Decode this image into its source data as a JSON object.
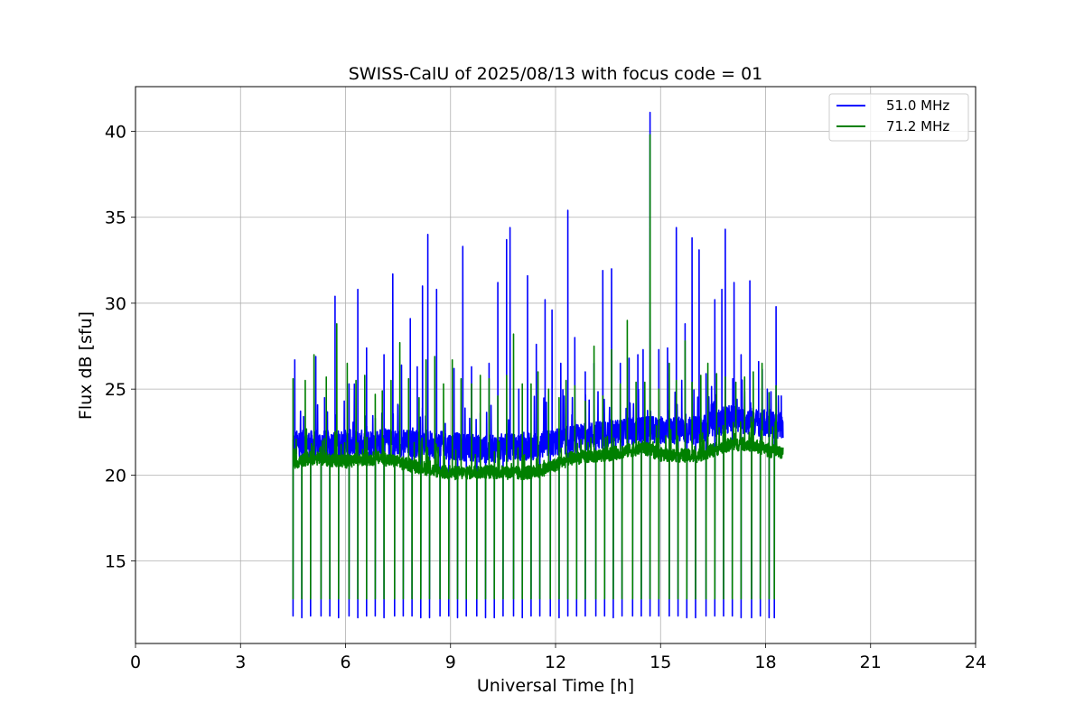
{
  "chart_data": {
    "type": "line",
    "title": "SWISS-CalU of 2025/08/13 with focus code = 01",
    "xlabel": "Universal Time [h]",
    "ylabel": "Flux dB [sfu]",
    "xlim": [
      0,
      24
    ],
    "ylim": [
      10.2,
      42.6
    ],
    "xticks": [
      0,
      3,
      6,
      9,
      12,
      15,
      18,
      21,
      24
    ],
    "yticks": [
      15,
      20,
      25,
      30,
      35,
      40
    ],
    "grid": true,
    "legend_position": "top-right",
    "series": [
      {
        "name": "51.0 MHz",
        "color": "#0000ff",
        "baseline": [
          [
            4.5,
            21.8
          ],
          [
            5.5,
            21.8
          ],
          [
            7.0,
            21.9
          ],
          [
            8.5,
            21.8
          ],
          [
            10.0,
            21.5
          ],
          [
            11.5,
            21.7
          ],
          [
            13.0,
            22.3
          ],
          [
            14.5,
            22.6
          ],
          [
            16.0,
            22.6
          ],
          [
            17.0,
            23.3
          ],
          [
            18.0,
            23.0
          ],
          [
            18.5,
            22.8
          ]
        ],
        "noise": 1.6,
        "spikes": [
          [
            4.55,
            26.7
          ],
          [
            4.8,
            23.4
          ],
          [
            5.15,
            26.9
          ],
          [
            5.4,
            24.5
          ],
          [
            5.7,
            30.4
          ],
          [
            6.1,
            25.3
          ],
          [
            6.35,
            30.8
          ],
          [
            6.6,
            27.4
          ],
          [
            6.85,
            23.3
          ],
          [
            7.1,
            27.0
          ],
          [
            7.35,
            31.7
          ],
          [
            7.6,
            26.4
          ],
          [
            7.85,
            29.1
          ],
          [
            8.05,
            26.3
          ],
          [
            8.2,
            31.0
          ],
          [
            8.35,
            34.0
          ],
          [
            8.6,
            30.8
          ],
          [
            8.85,
            23.0
          ],
          [
            9.1,
            26.2
          ],
          [
            9.35,
            33.3
          ],
          [
            9.6,
            26.3
          ],
          [
            9.85,
            23.6
          ],
          [
            10.1,
            26.5
          ],
          [
            10.35,
            31.2
          ],
          [
            10.6,
            33.7
          ],
          [
            10.7,
            34.4
          ],
          [
            10.95,
            25.0
          ],
          [
            11.2,
            31.6
          ],
          [
            11.45,
            27.6
          ],
          [
            11.7,
            30.2
          ],
          [
            11.9,
            29.6
          ],
          [
            12.15,
            26.5
          ],
          [
            12.35,
            35.4
          ],
          [
            12.55,
            28.0
          ],
          [
            12.85,
            26.0
          ],
          [
            13.1,
            26.5
          ],
          [
            13.35,
            31.9
          ],
          [
            13.6,
            32.0
          ],
          [
            13.85,
            26.5
          ],
          [
            14.1,
            26.8
          ],
          [
            14.35,
            27.0
          ],
          [
            14.5,
            27.3
          ],
          [
            14.7,
            41.1
          ],
          [
            14.95,
            27.3
          ],
          [
            15.2,
            27.4
          ],
          [
            15.45,
            34.4
          ],
          [
            15.7,
            28.8
          ],
          [
            15.9,
            33.8
          ],
          [
            16.1,
            33.1
          ],
          [
            16.3,
            25.9
          ],
          [
            16.55,
            30.2
          ],
          [
            16.75,
            30.8
          ],
          [
            16.85,
            34.3
          ],
          [
            17.1,
            31.2
          ],
          [
            17.3,
            27.0
          ],
          [
            17.55,
            31.3
          ],
          [
            17.8,
            26.6
          ],
          [
            18.05,
            25.0
          ],
          [
            18.3,
            29.8
          ],
          [
            18.45,
            24.6
          ]
        ],
        "dips": [
          [
            4.5,
            11.8
          ],
          [
            4.75,
            11.7
          ],
          [
            5.0,
            11.8
          ],
          [
            5.3,
            11.8
          ],
          [
            5.55,
            11.8
          ],
          [
            5.8,
            11.7
          ],
          [
            6.1,
            11.8
          ],
          [
            6.35,
            11.7
          ],
          [
            6.6,
            11.8
          ],
          [
            6.85,
            11.8
          ],
          [
            7.1,
            11.7
          ],
          [
            7.4,
            11.8
          ],
          [
            7.65,
            11.8
          ],
          [
            7.9,
            11.8
          ],
          [
            8.15,
            11.7
          ],
          [
            8.4,
            11.7
          ],
          [
            8.7,
            11.8
          ],
          [
            8.95,
            11.8
          ],
          [
            9.2,
            11.7
          ],
          [
            9.45,
            11.8
          ],
          [
            9.75,
            11.8
          ],
          [
            10.0,
            11.7
          ],
          [
            10.25,
            11.7
          ],
          [
            10.5,
            11.8
          ],
          [
            10.8,
            11.8
          ],
          [
            11.05,
            11.7
          ],
          [
            11.3,
            11.8
          ],
          [
            11.55,
            11.8
          ],
          [
            11.85,
            11.8
          ],
          [
            12.1,
            11.7
          ],
          [
            12.35,
            11.8
          ],
          [
            12.6,
            11.8
          ],
          [
            12.85,
            11.8
          ],
          [
            13.15,
            11.8
          ],
          [
            13.4,
            11.8
          ],
          [
            13.65,
            11.7
          ],
          [
            13.9,
            11.8
          ],
          [
            14.2,
            11.8
          ],
          [
            14.45,
            11.8
          ],
          [
            14.7,
            11.8
          ],
          [
            14.95,
            11.8
          ],
          [
            15.25,
            11.8
          ],
          [
            15.5,
            11.8
          ],
          [
            15.75,
            11.7
          ],
          [
            16.0,
            11.7
          ],
          [
            16.3,
            11.8
          ],
          [
            16.55,
            11.8
          ],
          [
            16.8,
            11.8
          ],
          [
            17.05,
            11.8
          ],
          [
            17.3,
            11.7
          ],
          [
            17.6,
            11.7
          ],
          [
            17.85,
            11.8
          ],
          [
            18.1,
            11.7
          ],
          [
            18.25,
            11.7
          ]
        ]
      },
      {
        "name": "71.2 MHz",
        "color": "#008000",
        "baseline": [
          [
            4.5,
            20.7
          ],
          [
            5.0,
            21.0
          ],
          [
            6.0,
            20.8
          ],
          [
            7.0,
            21.0
          ],
          [
            8.0,
            20.5
          ],
          [
            9.0,
            20.1
          ],
          [
            10.0,
            20.2
          ],
          [
            11.0,
            20.1
          ],
          [
            11.5,
            20.2
          ],
          [
            12.5,
            21.0
          ],
          [
            13.5,
            21.2
          ],
          [
            14.5,
            21.6
          ],
          [
            15.0,
            21.2
          ],
          [
            16.0,
            21.1
          ],
          [
            17.0,
            21.8
          ],
          [
            17.5,
            21.8
          ],
          [
            18.5,
            21.2
          ]
        ],
        "noise": 0.8,
        "spikes": [
          [
            4.5,
            25.6
          ],
          [
            4.85,
            25.5
          ],
          [
            5.1,
            27.0
          ],
          [
            5.45,
            25.7
          ],
          [
            5.75,
            28.8
          ],
          [
            6.05,
            26.5
          ],
          [
            6.3,
            25.5
          ],
          [
            6.55,
            25.8
          ],
          [
            6.85,
            24.7
          ],
          [
            7.05,
            24.9
          ],
          [
            7.3,
            25.5
          ],
          [
            7.55,
            27.7
          ],
          [
            7.8,
            25.6
          ],
          [
            8.1,
            24.5
          ],
          [
            8.3,
            26.7
          ],
          [
            8.55,
            26.9
          ],
          [
            8.8,
            25.3
          ],
          [
            9.05,
            26.7
          ],
          [
            9.3,
            25.6
          ],
          [
            9.6,
            25.3
          ],
          [
            9.85,
            25.8
          ],
          [
            10.1,
            25.6
          ],
          [
            10.35,
            24.6
          ],
          [
            10.6,
            25.8
          ],
          [
            10.8,
            28.2
          ],
          [
            11.05,
            25.3
          ],
          [
            11.3,
            25.3
          ],
          [
            11.5,
            26.0
          ],
          [
            11.8,
            25.0
          ],
          [
            12.1,
            24.5
          ],
          [
            12.3,
            25.5
          ],
          [
            12.55,
            25.2
          ],
          [
            12.85,
            24.3
          ],
          [
            13.1,
            27.5
          ],
          [
            13.35,
            24.6
          ],
          [
            13.6,
            27.3
          ],
          [
            13.85,
            25.3
          ],
          [
            14.05,
            29.0
          ],
          [
            14.3,
            25.4
          ],
          [
            14.55,
            25.4
          ],
          [
            14.7,
            39.8
          ],
          [
            14.95,
            25.0
          ],
          [
            15.25,
            26.5
          ],
          [
            15.45,
            25.5
          ],
          [
            15.7,
            27.8
          ],
          [
            15.9,
            25.4
          ],
          [
            16.15,
            25.8
          ],
          [
            16.35,
            26.5
          ],
          [
            16.6,
            25.9
          ],
          [
            16.85,
            25.7
          ],
          [
            17.15,
            25.4
          ],
          [
            17.4,
            25.7
          ],
          [
            17.65,
            26.0
          ],
          [
            17.9,
            26.5
          ],
          [
            18.1,
            24.8
          ],
          [
            18.3,
            25.2
          ]
        ],
        "dips": [
          [
            4.5,
            12.8
          ],
          [
            4.75,
            12.8
          ],
          [
            5.0,
            12.8
          ],
          [
            5.3,
            12.8
          ],
          [
            5.55,
            12.8
          ],
          [
            5.8,
            12.8
          ],
          [
            6.1,
            12.8
          ],
          [
            6.35,
            12.8
          ],
          [
            6.6,
            12.8
          ],
          [
            6.85,
            12.8
          ],
          [
            7.1,
            12.8
          ],
          [
            7.4,
            12.8
          ],
          [
            7.65,
            12.8
          ],
          [
            7.9,
            12.8
          ],
          [
            8.15,
            12.8
          ],
          [
            8.4,
            12.8
          ],
          [
            8.7,
            12.8
          ],
          [
            8.95,
            12.8
          ],
          [
            9.2,
            12.8
          ],
          [
            9.45,
            12.8
          ],
          [
            9.75,
            12.8
          ],
          [
            10.0,
            12.8
          ],
          [
            10.25,
            12.8
          ],
          [
            10.5,
            12.8
          ],
          [
            10.8,
            12.8
          ],
          [
            11.05,
            12.8
          ],
          [
            11.3,
            12.8
          ],
          [
            11.55,
            12.8
          ],
          [
            11.85,
            12.8
          ],
          [
            12.1,
            12.8
          ],
          [
            12.35,
            12.8
          ],
          [
            12.6,
            12.8
          ],
          [
            12.85,
            12.8
          ],
          [
            13.15,
            12.8
          ],
          [
            13.4,
            12.8
          ],
          [
            13.65,
            12.8
          ],
          [
            13.9,
            12.8
          ],
          [
            14.2,
            12.8
          ],
          [
            14.45,
            12.8
          ],
          [
            14.7,
            12.8
          ],
          [
            14.95,
            12.8
          ],
          [
            15.25,
            12.8
          ],
          [
            15.5,
            12.8
          ],
          [
            15.75,
            12.8
          ],
          [
            16.0,
            12.8
          ],
          [
            16.3,
            12.8
          ],
          [
            16.55,
            12.8
          ],
          [
            16.8,
            12.8
          ],
          [
            17.05,
            12.8
          ],
          [
            17.3,
            12.8
          ],
          [
            17.6,
            12.8
          ],
          [
            17.85,
            12.8
          ],
          [
            18.1,
            12.8
          ],
          [
            18.25,
            12.8
          ]
        ]
      }
    ]
  }
}
